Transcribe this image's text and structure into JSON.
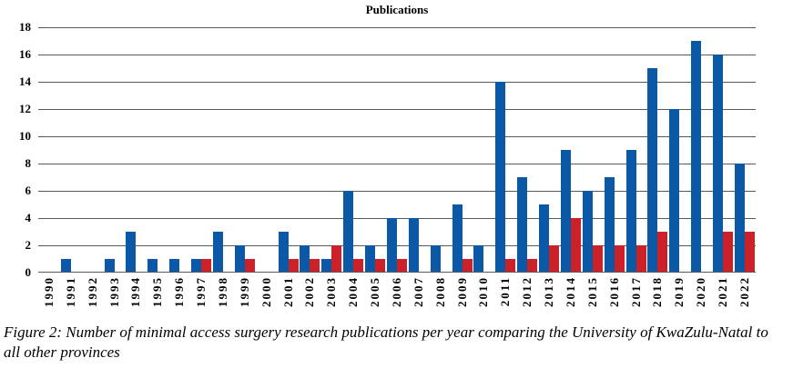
{
  "figure": {
    "caption_lines": [
      "Figure 2: Number of minimal access surgery research publications per year comparing the University of KwaZulu-Natal to",
      "all other provinces"
    ]
  },
  "chart_data": {
    "type": "bar",
    "title": "Publications",
    "categories": [
      "1990",
      "1991",
      "1992",
      "1993",
      "1994",
      "1995",
      "1996",
      "1997",
      "1998",
      "1999",
      "2000",
      "2001",
      "2002",
      "2003",
      "2004",
      "2005",
      "2006",
      "2007",
      "2008",
      "2009",
      "2010",
      "2011",
      "2012",
      "2013",
      "2014",
      "2015",
      "2016",
      "2017",
      "2018",
      "2019",
      "2020",
      "2021",
      "2022"
    ],
    "series": [
      {
        "name": "blue-series",
        "color": "#0b58a6",
        "values": [
          0,
          1,
          0,
          1,
          3,
          1,
          1,
          1,
          3,
          2,
          0,
          3,
          2,
          1,
          6,
          2,
          4,
          4,
          2,
          5,
          2,
          14,
          7,
          5,
          9,
          6,
          7,
          9,
          15,
          12,
          17,
          16,
          8
        ]
      },
      {
        "name": "red-series",
        "color": "#cb222a",
        "values": [
          0,
          0,
          0,
          0,
          0,
          0,
          0,
          1,
          0,
          1,
          0,
          1,
          1,
          2,
          1,
          1,
          1,
          0,
          0,
          1,
          0,
          1,
          1,
          2,
          4,
          2,
          2,
          2,
          3,
          0,
          0,
          3,
          3
        ]
      }
    ],
    "xlabel": "",
    "ylabel": "",
    "ylim": [
      0,
      18
    ],
    "yticks": [
      0,
      2,
      4,
      6,
      8,
      10,
      12,
      14,
      16,
      18
    ],
    "grid": true,
    "gridline_color": "#595959",
    "legend_position": "none"
  }
}
